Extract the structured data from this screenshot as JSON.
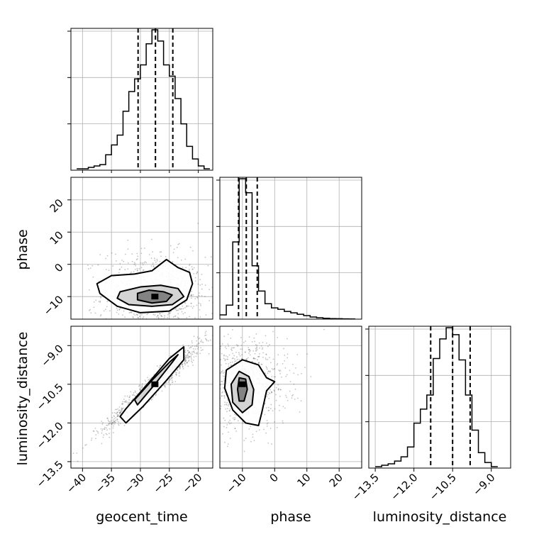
{
  "chart_data": {
    "type": "corner",
    "parameters": [
      "geocent_time",
      "phase",
      "luminosity_distance"
    ],
    "grid": true,
    "colors": {
      "line": "#000000",
      "grid": "#b0b0b0",
      "points": "#555555"
    },
    "ranges": {
      "geocent_time": [
        -42,
        -17.5
      ],
      "phase": [
        -17,
        27
      ],
      "luminosity_distance": [
        -13.75,
        -8.25
      ]
    },
    "ticks": {
      "geocent_time": [
        -40,
        -35,
        -30,
        -25,
        -20
      ],
      "phase": [
        -10,
        0,
        10,
        20
      ],
      "luminosity_distance": [
        -13.5,
        -12.0,
        -10.5,
        -9.0
      ]
    },
    "tick_labels": {
      "geocent_time": [
        "−40",
        "−35",
        "−30",
        "−25",
        "−20"
      ],
      "phase": [
        "−10",
        "0",
        "10",
        "20"
      ],
      "luminosity_distance": [
        "−13.5",
        "−12.0",
        "−10.5",
        "−9.0"
      ]
    },
    "histograms": [
      {
        "parameter": "geocent_time",
        "bin_edges": [
          -41,
          -40,
          -39,
          -38,
          -37,
          -36,
          -35,
          -34,
          -33,
          -32,
          -31,
          -30,
          -29,
          -28,
          -27,
          -26,
          -25,
          -24,
          -23,
          -22,
          -21,
          -20,
          -19,
          -18
        ],
        "counts": [
          0.01,
          0.01,
          0.02,
          0.03,
          0.04,
          0.11,
          0.18,
          0.25,
          0.42,
          0.56,
          0.65,
          0.75,
          0.9,
          1.0,
          0.92,
          0.75,
          0.67,
          0.51,
          0.33,
          0.17,
          0.08,
          0.03,
          0.01
        ],
        "quantiles": [
          -30.4,
          -27.4,
          -24.4
        ],
        "y_ticks": [
          0.33,
          0.66,
          0.99
        ]
      },
      {
        "parameter": "phase",
        "bin_edges": [
          -17,
          -15,
          -13,
          -11,
          -9,
          -7,
          -5,
          -3,
          -1,
          1,
          3,
          5,
          7,
          9,
          11,
          13,
          15,
          17,
          19,
          21,
          23,
          25
        ],
        "counts": [
          0.03,
          0.1,
          0.55,
          1.0,
          0.9,
          0.38,
          0.2,
          0.11,
          0.08,
          0.07,
          0.055,
          0.045,
          0.035,
          0.025,
          0.015,
          0.01,
          0.006,
          0.004,
          0.003,
          0.002,
          0.001
        ],
        "quantiles": [
          -11.2,
          -8.8,
          -5.4
        ],
        "y_ticks": [
          0.33,
          0.66,
          0.99
        ]
      },
      {
        "parameter": "luminosity_distance",
        "bin_edges": [
          -13.5,
          -13.25,
          -13.0,
          -12.75,
          -12.5,
          -12.25,
          -12.0,
          -11.75,
          -11.5,
          -11.25,
          -11.0,
          -10.75,
          -10.5,
          -10.25,
          -10.0,
          -9.75,
          -9.5,
          -9.25,
          -9.0,
          -8.75
        ],
        "counts": [
          0.01,
          0.02,
          0.03,
          0.05,
          0.08,
          0.15,
          0.32,
          0.42,
          0.52,
          0.78,
          0.92,
          1.0,
          0.95,
          0.77,
          0.52,
          0.27,
          0.11,
          0.04,
          0.01
        ],
        "quantiles": [
          -11.35,
          -10.5,
          -9.82
        ],
        "y_ticks": [
          0.33,
          0.66,
          0.99
        ]
      }
    ],
    "pairs": [
      {
        "x": "geocent_time",
        "y": "phase",
        "center": [
          -27.5,
          -10
        ],
        "scatter_sd": [
          4.5,
          7
        ],
        "contours": [
          [
            [
              -37.5,
              -6
            ],
            [
              -35,
              -3.5
            ],
            [
              -31,
              -3
            ],
            [
              -28,
              -2
            ],
            [
              -25.5,
              1.5
            ],
            [
              -23.5,
              -1
            ],
            [
              -21.5,
              -2.5
            ],
            [
              -21,
              -6
            ],
            [
              -22,
              -11
            ],
            [
              -25,
              -14.5
            ],
            [
              -30,
              -15
            ],
            [
              -34,
              -13
            ],
            [
              -37,
              -9
            ]
          ],
          [
            [
              -33.5,
              -8.5
            ],
            [
              -30,
              -7
            ],
            [
              -26.5,
              -6.5
            ],
            [
              -23.5,
              -7.5
            ],
            [
              -22.5,
              -10
            ],
            [
              -24.5,
              -12.5
            ],
            [
              -28,
              -13
            ],
            [
              -32,
              -12.5
            ],
            [
              -34,
              -10.5
            ]
          ],
          [
            [
              -30.5,
              -9
            ],
            [
              -28.5,
              -8
            ],
            [
              -26,
              -8.5
            ],
            [
              -24.5,
              -9.5
            ],
            [
              -25.5,
              -11.5
            ],
            [
              -28,
              -12
            ],
            [
              -30.5,
              -11
            ]
          ]
        ]
      },
      {
        "x": "geocent_time",
        "y": "luminosity_distance",
        "center": [
          -27.5,
          -10.5
        ],
        "scatter_sd": [
          4.5,
          0.9
        ],
        "contours": [
          [
            [
              -33.5,
              -11.75
            ],
            [
              -32.5,
              -11.45
            ],
            [
              -29,
              -10.55
            ],
            [
              -25,
              -9.5
            ],
            [
              -22.5,
              -9.05
            ],
            [
              -22.5,
              -9.55
            ],
            [
              -25.5,
              -10.35
            ],
            [
              -29.5,
              -11.35
            ],
            [
              -32.5,
              -12.0
            ]
          ],
          [
            [
              -31,
              -11.1
            ],
            [
              -28,
              -10.35
            ],
            [
              -25,
              -9.65
            ],
            [
              -23.5,
              -9.35
            ],
            [
              -24.5,
              -9.65
            ],
            [
              -27.5,
              -10.5
            ],
            [
              -30.5,
              -11.3
            ]
          ]
        ]
      },
      {
        "x": "phase",
        "y": "luminosity_distance",
        "center": [
          -10,
          -10.5
        ],
        "scatter_sd": [
          7,
          0.9
        ],
        "contours": [
          [
            [
              -10,
              -9.55
            ],
            [
              -5,
              -9.75
            ],
            [
              -2.5,
              -10.25
            ],
            [
              0,
              -10.4
            ],
            [
              -2.5,
              -10.75
            ],
            [
              -4,
              -11.6
            ],
            [
              -5,
              -12.1
            ],
            [
              -9,
              -12.0
            ],
            [
              -13,
              -11.5
            ],
            [
              -15.5,
              -10.65
            ],
            [
              -15,
              -9.95
            ]
          ],
          [
            [
              -11,
              -10.0
            ],
            [
              -8,
              -10.2
            ],
            [
              -6.5,
              -10.7
            ],
            [
              -7,
              -11.3
            ],
            [
              -10,
              -11.6
            ],
            [
              -13,
              -11.2
            ],
            [
              -13.5,
              -10.5
            ]
          ],
          [
            [
              -11,
              -10.25
            ],
            [
              -9,
              -10.3
            ],
            [
              -8.5,
              -10.7
            ],
            [
              -9.5,
              -11.15
            ],
            [
              -11,
              -11.15
            ],
            [
              -11.5,
              -10.7
            ]
          ]
        ]
      }
    ]
  }
}
